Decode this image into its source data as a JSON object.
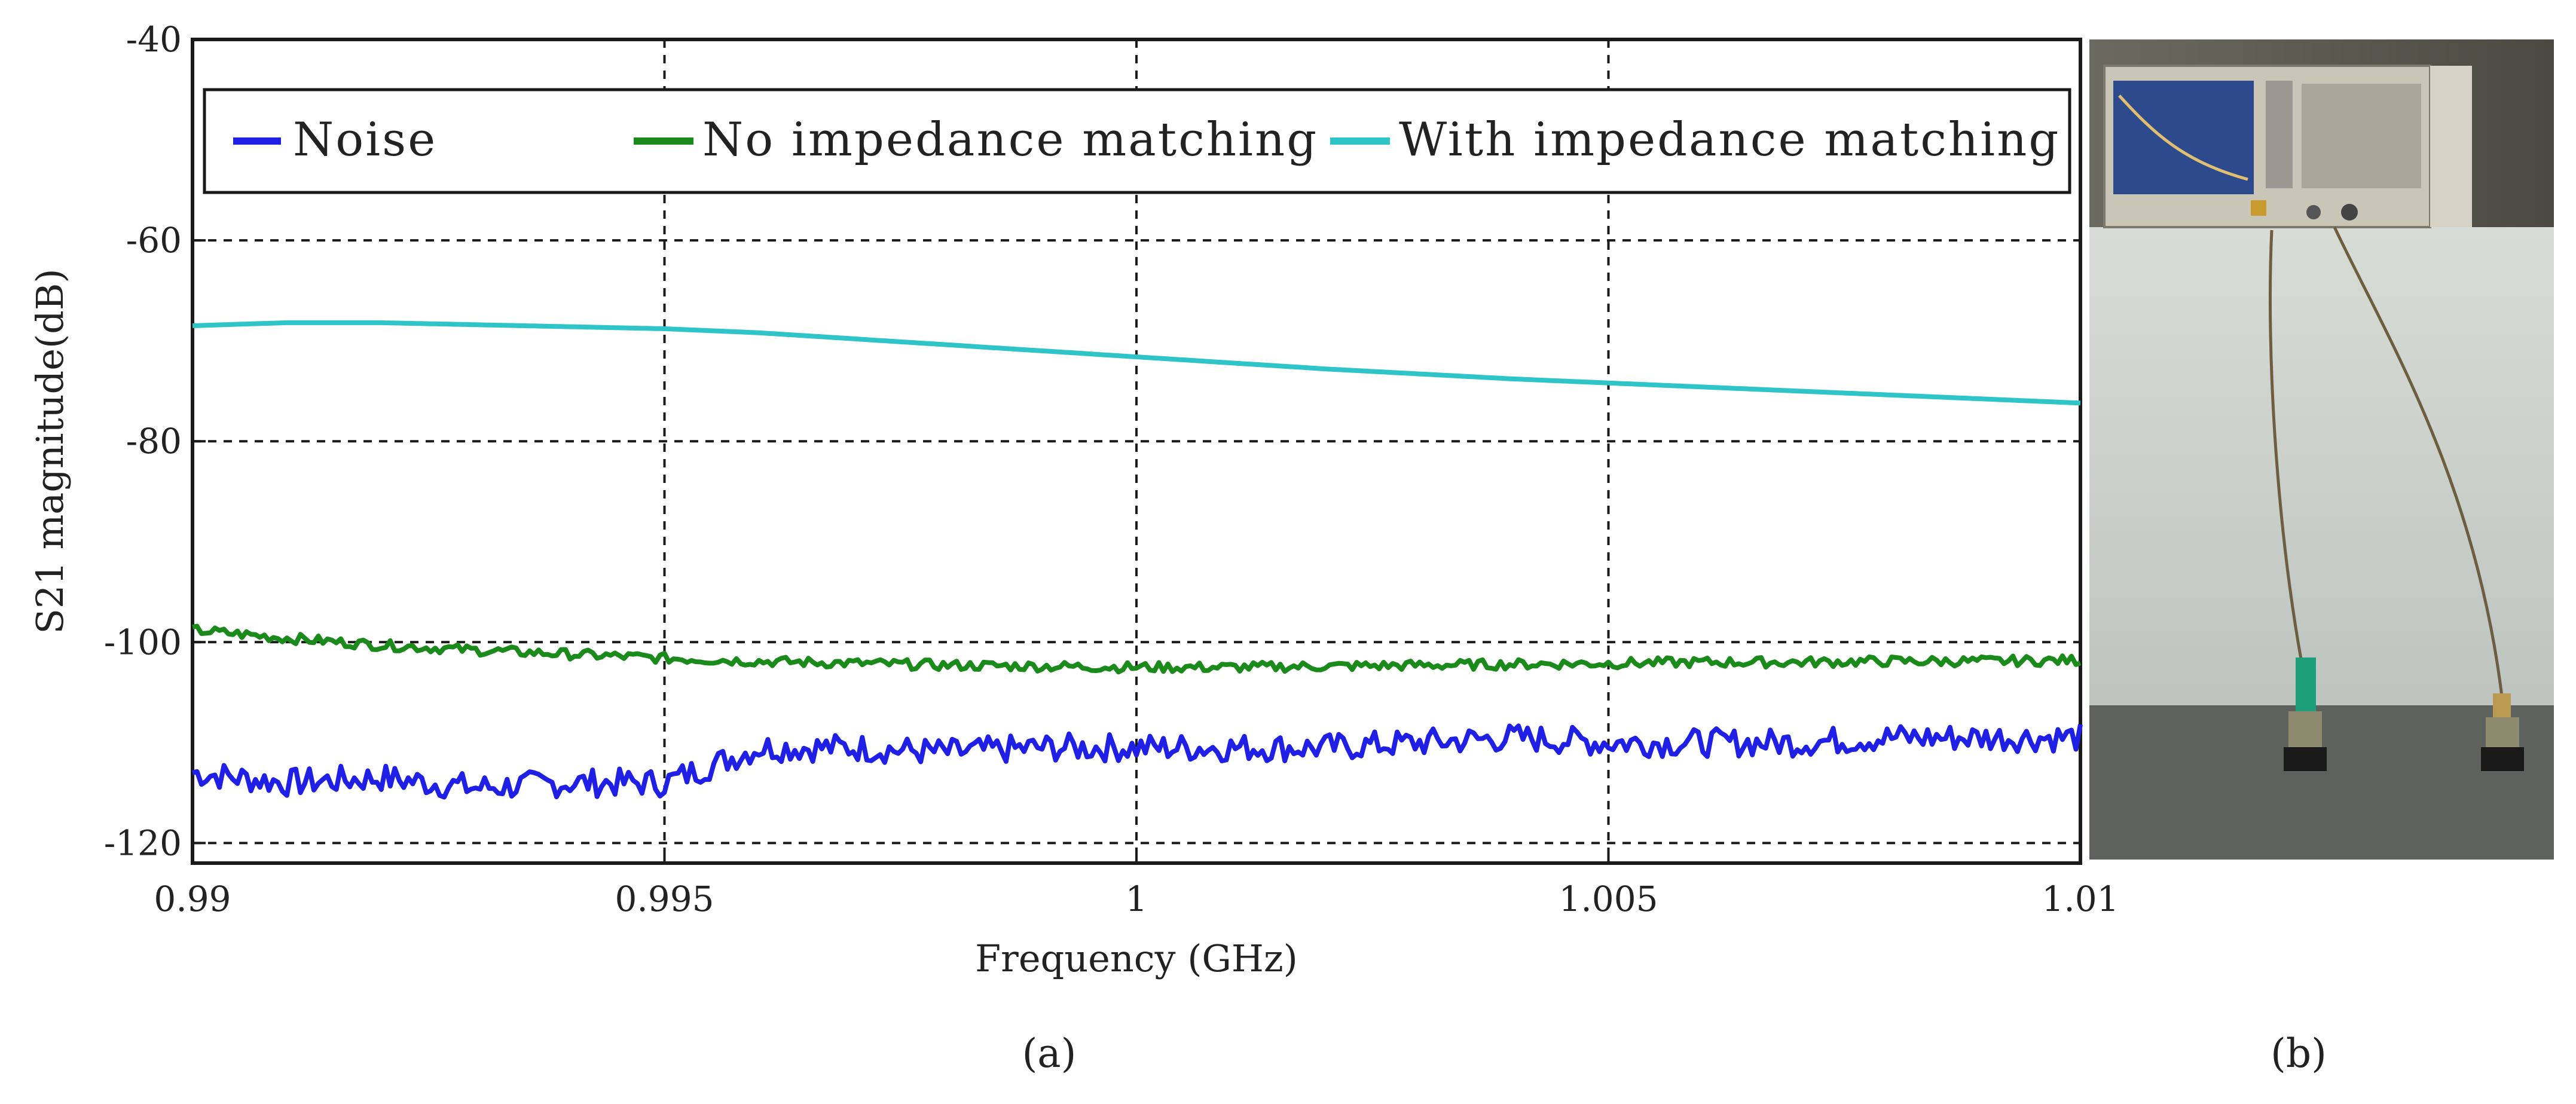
{
  "chart_data": {
    "type": "line",
    "caption": "(a)",
    "xlabel": "Frequency (GHz)",
    "ylabel": "S21 magnitude(dB)",
    "xlim": [
      0.99,
      1.01
    ],
    "ylim": [
      -122,
      -40
    ],
    "x_ticks": [
      0.99,
      0.995,
      1.0,
      1.005,
      1.01
    ],
    "x_tick_labels": [
      "0.99",
      "0.995",
      "1",
      "1.005",
      "1.01"
    ],
    "y_ticks": [
      -40,
      -60,
      -80,
      -100,
      -120
    ],
    "y_tick_labels": [
      "-40",
      "-60",
      "-80",
      "-100",
      "-120"
    ],
    "grid": true,
    "legend_position": "top",
    "series": [
      {
        "name": "Noise",
        "color": "#1f1fe6",
        "x": [
          0.99,
          0.991,
          0.992,
          0.993,
          0.994,
          0.995,
          0.996,
          0.997,
          0.998,
          0.999,
          1.0,
          1.001,
          1.002,
          1.003,
          1.004,
          1.005,
          1.006,
          1.007,
          1.008,
          1.009,
          1.01
        ],
        "values": [
          -113,
          -114,
          -113.5,
          -114.5,
          -114,
          -114,
          -110.5,
          -110.5,
          -111,
          -110.5,
          -110.5,
          -110.5,
          -110.5,
          -110,
          -109.5,
          -110,
          -110,
          -110,
          -109.5,
          -109.5,
          -109.5
        ],
        "jitter": 1.4
      },
      {
        "name": "No impedance matching",
        "color": "#1a8a1a",
        "x": [
          0.99,
          0.991,
          0.992,
          0.993,
          0.994,
          0.995,
          0.996,
          0.997,
          0.998,
          0.999,
          1.0,
          1.001,
          1.002,
          1.003,
          1.004,
          1.005,
          1.006,
          1.007,
          1.008,
          1.009,
          1.01
        ],
        "values": [
          -98.8,
          -99.6,
          -100.3,
          -100.8,
          -101.2,
          -101.6,
          -101.9,
          -102.1,
          -102.3,
          -102.4,
          -102.5,
          -102.5,
          -102.4,
          -102.3,
          -102.2,
          -102.1,
          -102.0,
          -102.0,
          -101.9,
          -101.9,
          -101.8
        ],
        "jitter": 0.5
      },
      {
        "name": "With impedance matching",
        "color": "#2ec4c8",
        "x": [
          0.99,
          0.991,
          0.992,
          0.993,
          0.994,
          0.995,
          0.996,
          0.997,
          0.998,
          0.999,
          1.0,
          1.001,
          1.002,
          1.003,
          1.004,
          1.005,
          1.006,
          1.007,
          1.008,
          1.009,
          1.01
        ],
        "values": [
          -68.5,
          -68.2,
          -68.2,
          -68.4,
          -68.6,
          -68.8,
          -69.2,
          -69.8,
          -70.4,
          -71.0,
          -71.6,
          -72.2,
          -72.8,
          -73.3,
          -73.8,
          -74.2,
          -74.6,
          -75.0,
          -75.4,
          -75.8,
          -76.2
        ],
        "jitter": 0
      }
    ]
  },
  "photo": {
    "caption": "(b)",
    "description_icon": "photo-icon"
  }
}
